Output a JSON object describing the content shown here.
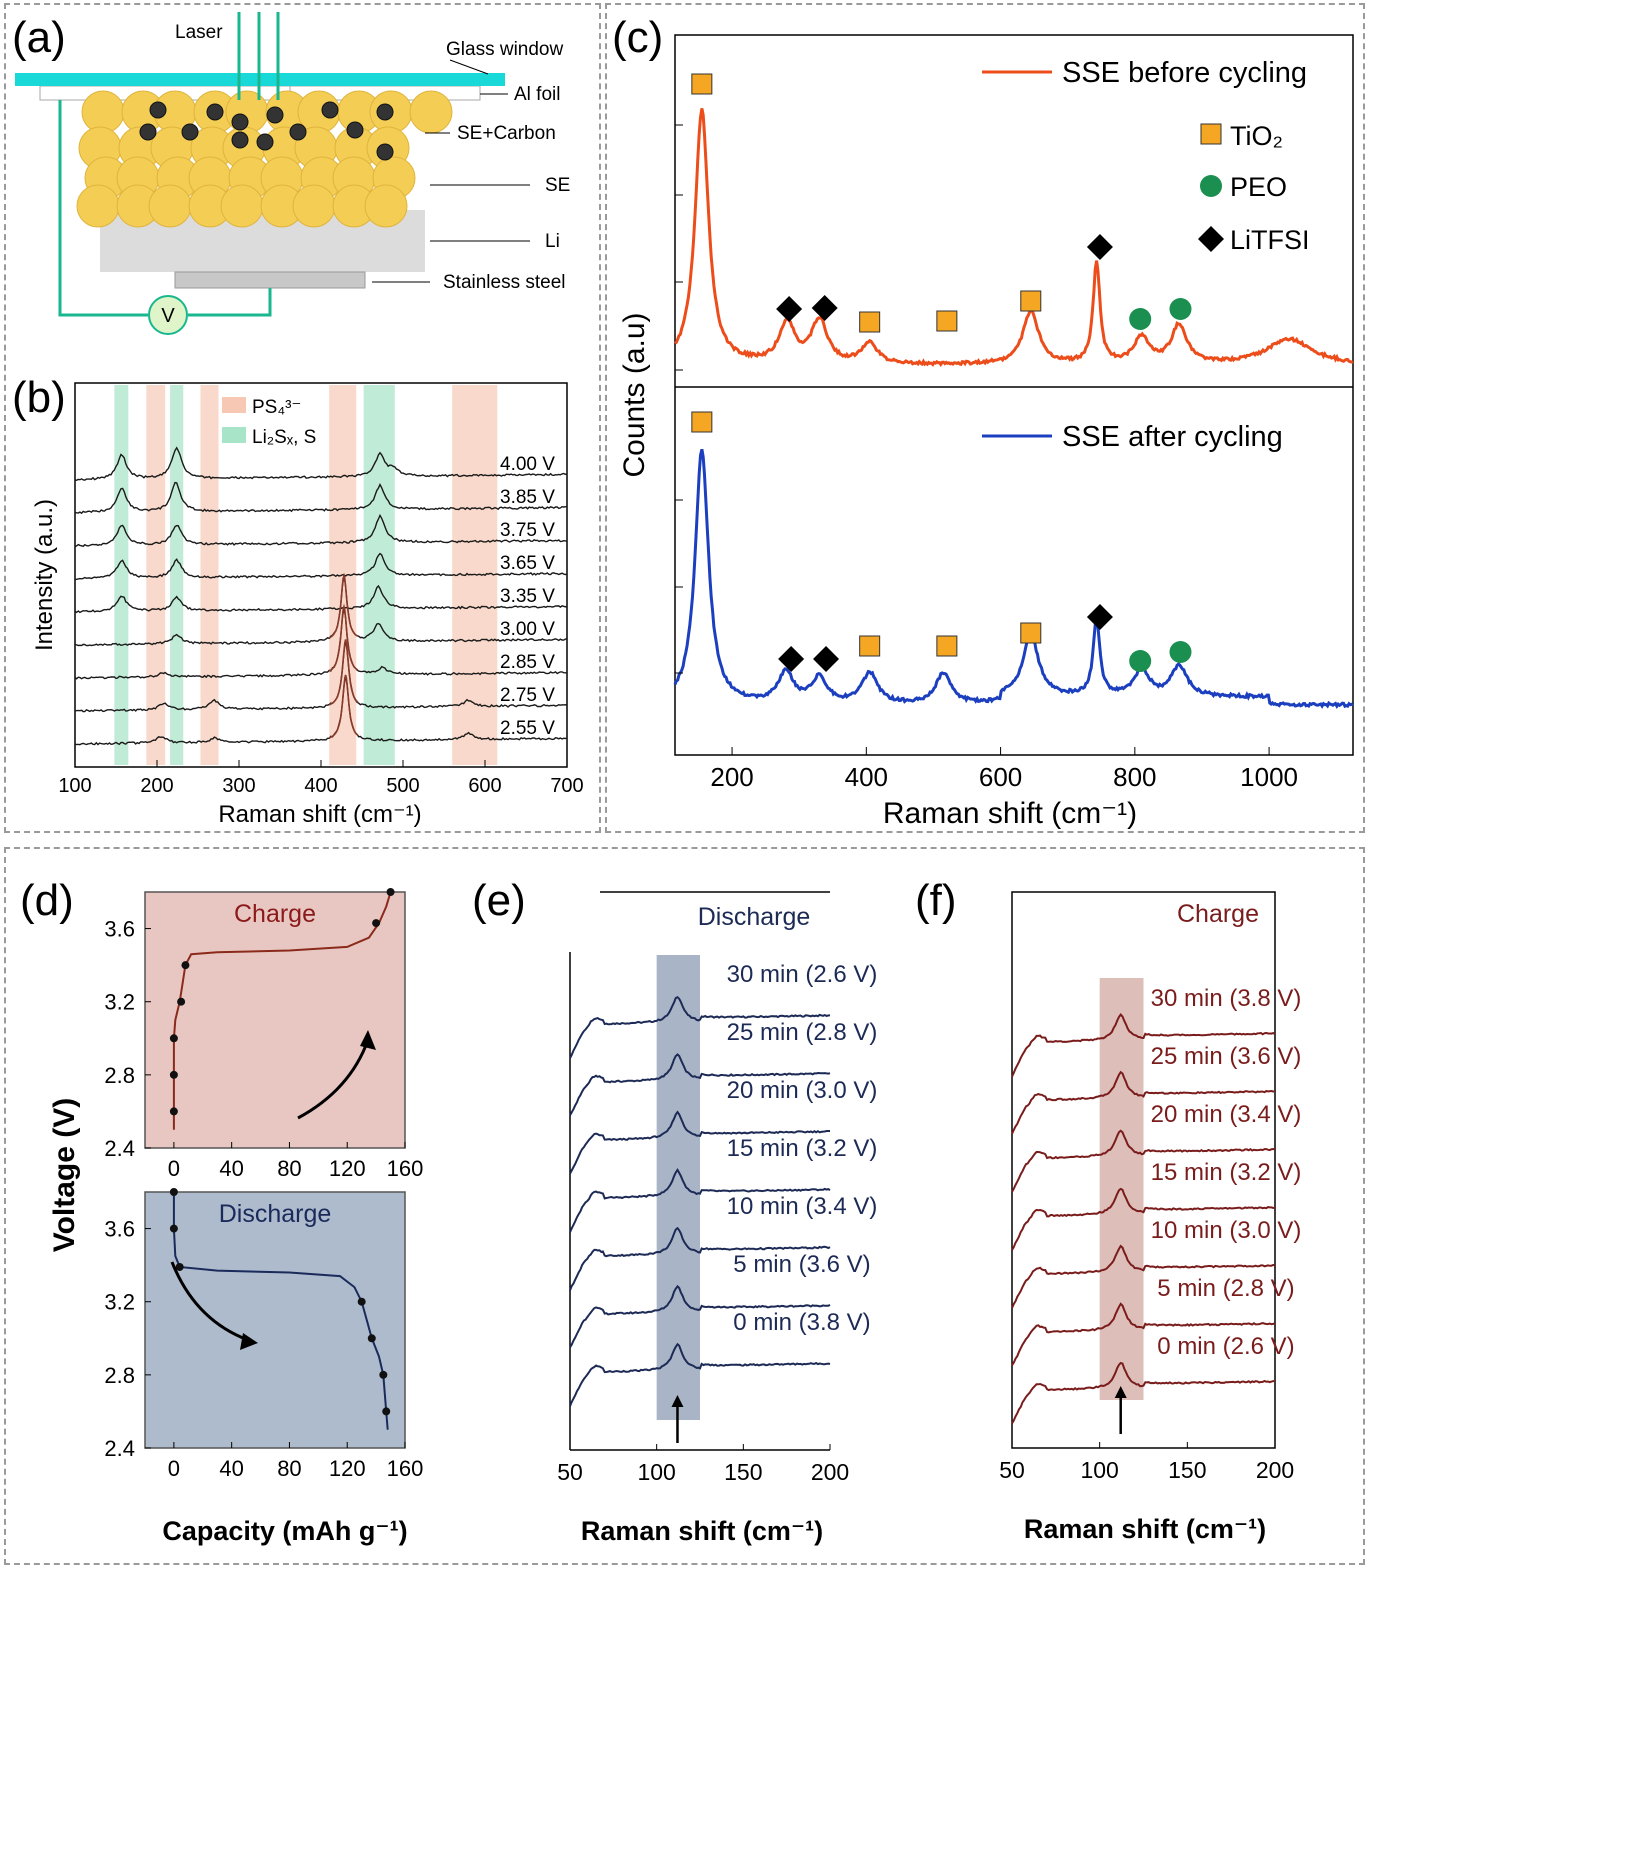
{
  "panels": {
    "a": "(a)",
    "b": "(b)",
    "c": "(c)",
    "d": "(d)",
    "e": "(e)",
    "f": "(f)"
  },
  "schematic": {
    "labels": {
      "laser": "Laser",
      "glass_window": "Glass window",
      "al_foil": "Al foil",
      "se_carbon": "SE+Carbon",
      "se": "SE",
      "li": "Li",
      "stainless_steel": "Stainless steel",
      "voltmeter": "V"
    },
    "colors": {
      "window": "#18d8d8",
      "particle": "#f4cd55",
      "wire": "#19b78f",
      "li_layer": "#d9d9d9"
    }
  },
  "chart_data": [
    {
      "id": "b",
      "type": "line",
      "xlabel": "Raman shift (cm⁻¹)",
      "ylabel": "Intensity (a.u.)",
      "xlim": [
        100,
        700
      ],
      "xticks": [
        100,
        200,
        300,
        400,
        500,
        600,
        700
      ],
      "legend": [
        {
          "name": "PS₄³⁻",
          "color": "#f7c8b4"
        },
        {
          "name": "Li₂Sₓ, S",
          "color": "#a8e4c8"
        }
      ],
      "bands": [
        {
          "x": [
            148,
            165
          ],
          "type": "Li2Sx"
        },
        {
          "x": [
            187,
            210
          ],
          "type": "PS4"
        },
        {
          "x": [
            216,
            232
          ],
          "type": "Li2Sx"
        },
        {
          "x": [
            253,
            275
          ],
          "type": "PS4"
        },
        {
          "x": [
            410,
            443
          ],
          "type": "PS4"
        },
        {
          "x": [
            452,
            490
          ],
          "type": "Li2Sx"
        },
        {
          "x": [
            560,
            615
          ],
          "type": "PS4"
        }
      ],
      "series": [
        {
          "name": "4.00 V",
          "peaks": [
            [
              157,
              1.1
            ],
            [
              224,
              1.4
            ],
            [
              472,
              1.0
            ],
            [
              488,
              0.3
            ]
          ]
        },
        {
          "name": "3.85 V",
          "peaks": [
            [
              157,
              1.1
            ],
            [
              223,
              1.3
            ],
            [
              472,
              1.1
            ]
          ]
        },
        {
          "name": "3.75 V",
          "peaks": [
            [
              157,
              0.9
            ],
            [
              224,
              0.9
            ],
            [
              472,
              1.2
            ]
          ]
        },
        {
          "name": "3.65 V",
          "peaks": [
            [
              157,
              0.8
            ],
            [
              224,
              0.8
            ],
            [
              472,
              1.0
            ]
          ]
        },
        {
          "name": "3.35 V",
          "peaks": [
            [
              157,
              0.7
            ],
            [
              224,
              0.6
            ],
            [
              470,
              1.0
            ]
          ]
        },
        {
          "name": "3.00 V",
          "peaks": [
            [
              224,
              0.4
            ],
            [
              428,
              3.0
            ],
            [
              470,
              0.8
            ]
          ]
        },
        {
          "name": "2.85 V",
          "peaks": [
            [
              208,
              0.2
            ],
            [
              428,
              3.1
            ],
            [
              475,
              0.3
            ]
          ]
        },
        {
          "name": "2.75 V",
          "peaks": [
            [
              208,
              0.3
            ],
            [
              270,
              0.4
            ],
            [
              430,
              3.1
            ],
            [
              580,
              0.3
            ]
          ]
        },
        {
          "name": "2.55 V",
          "peaks": [
            [
              205,
              0.3
            ],
            [
              270,
              0.2
            ],
            [
              430,
              3.0
            ],
            [
              580,
              0.3
            ]
          ]
        }
      ],
      "line_color": "#1a1a1a",
      "peak_color": "#8b3a2a"
    },
    {
      "id": "c",
      "type": "line",
      "xlabel": "Raman shift (cm⁻¹)",
      "ylabel": "Counts (a.u)",
      "xlim": [
        115,
        1125
      ],
      "xticks": [
        200,
        400,
        600,
        800,
        1000
      ],
      "legend_markers": [
        {
          "name": "TiO₂",
          "shape": "square",
          "color": "#f5a623"
        },
        {
          "name": "PEO",
          "shape": "circle",
          "color": "#1a8f4f"
        },
        {
          "name": "LiTFSI",
          "shape": "diamond",
          "color": "#000000"
        }
      ],
      "series": [
        {
          "name": "SSE before cycling",
          "color": "#ec4d1a",
          "peaks": [
            [
              155,
              1.0
            ],
            [
              282,
              0.16
            ],
            [
              330,
              0.17
            ],
            [
              405,
              0.08
            ],
            [
              645,
              0.21
            ],
            [
              743,
              0.4
            ],
            [
              810,
              0.1
            ],
            [
              866,
              0.15
            ],
            [
              1030,
              0.1
            ]
          ],
          "markers": [
            {
              "shape": "square",
              "x": 155
            },
            {
              "shape": "diamond",
              "x": 285
            },
            {
              "shape": "diamond",
              "x": 338
            },
            {
              "shape": "square",
              "x": 405
            },
            {
              "shape": "square",
              "x": 520
            },
            {
              "shape": "square",
              "x": 645
            },
            {
              "shape": "diamond",
              "x": 748
            },
            {
              "shape": "circle",
              "x": 808
            },
            {
              "shape": "circle",
              "x": 868
            }
          ]
        },
        {
          "name": "SSE after cycling",
          "color": "#1b3fbf",
          "peaks": [
            [
              155,
              1.0
            ],
            [
              280,
              0.12
            ],
            [
              330,
              0.1
            ],
            [
              405,
              0.12
            ],
            [
              515,
              0.12
            ],
            [
              645,
              0.24
            ],
            [
              743,
              0.3
            ],
            [
              810,
              0.1
            ],
            [
              866,
              0.12
            ]
          ],
          "markers": [
            {
              "shape": "square",
              "x": 155
            },
            {
              "shape": "diamond",
              "x": 288
            },
            {
              "shape": "diamond",
              "x": 340
            },
            {
              "shape": "square",
              "x": 405
            },
            {
              "shape": "square",
              "x": 520
            },
            {
              "shape": "square",
              "x": 645
            },
            {
              "shape": "diamond",
              "x": 748
            },
            {
              "shape": "circle",
              "x": 808
            },
            {
              "shape": "circle",
              "x": 868
            }
          ]
        }
      ]
    },
    {
      "id": "d",
      "type": "line",
      "xlabel": "Capacity (mAh g⁻¹)",
      "ylabel": "Voltage (V)",
      "xlim": [
        -20,
        160
      ],
      "ylim": [
        2.4,
        3.8
      ],
      "xticks": [
        0,
        40,
        80,
        120,
        160
      ],
      "yticks": [
        2.4,
        2.8,
        3.2,
        3.6
      ],
      "subplots": [
        {
          "name": "Charge",
          "bg": "#e8c7c2",
          "line_color": "#8b2a1a",
          "text_color": "#8b1a1a",
          "curve": [
            [
              0,
              2.5
            ],
            [
              0,
              2.6
            ],
            [
              0,
              2.8
            ],
            [
              0,
              3.0
            ],
            [
              1,
              3.1
            ],
            [
              4,
              3.2
            ],
            [
              6,
              3.3
            ],
            [
              8,
              3.4
            ],
            [
              12,
              3.46
            ],
            [
              30,
              3.47
            ],
            [
              80,
              3.48
            ],
            [
              120,
              3.5
            ],
            [
              135,
              3.55
            ],
            [
              142,
              3.63
            ],
            [
              147,
              3.72
            ],
            [
              150,
              3.8
            ]
          ],
          "points": [
            [
              0,
              2.6
            ],
            [
              0,
              2.8
            ],
            [
              0,
              3.0
            ],
            [
              5,
              3.2
            ],
            [
              8,
              3.4
            ],
            [
              140,
              3.63
            ],
            [
              150,
              3.8
            ]
          ]
        },
        {
          "name": "Discharge",
          "bg": "#aebbcd",
          "line_color": "#1a2a5a",
          "text_color": "#1a2a5a",
          "curve": [
            [
              0,
              3.8
            ],
            [
              0,
              3.6
            ],
            [
              1,
              3.45
            ],
            [
              4,
              3.39
            ],
            [
              30,
              3.37
            ],
            [
              80,
              3.36
            ],
            [
              115,
              3.34
            ],
            [
              125,
              3.28
            ],
            [
              130,
              3.2
            ],
            [
              137,
              3.0
            ],
            [
              142,
              2.9
            ],
            [
              145,
              2.8
            ],
            [
              147,
              2.6
            ],
            [
              148,
              2.5
            ]
          ],
          "points": [
            [
              0,
              3.8
            ],
            [
              0,
              3.6
            ],
            [
              4,
              3.39
            ],
            [
              130,
              3.2
            ],
            [
              137,
              3.0
            ],
            [
              145,
              2.8
            ],
            [
              147,
              2.6
            ]
          ]
        }
      ]
    },
    {
      "id": "e",
      "type": "line",
      "title": "Discharge",
      "xlabel": "Raman shift (cm⁻¹)",
      "xlim": [
        50,
        200
      ],
      "xticks": [
        50,
        100,
        150,
        200
      ],
      "band": [
        100,
        125
      ],
      "band_color": "#9aa8bd",
      "line_color": "#1c2a55",
      "text_color": "#1c2a55",
      "peak_x": 112,
      "series": [
        {
          "name": "30 min (2.6 V)"
        },
        {
          "name": "25 min (2.8 V)"
        },
        {
          "name": "20 min (3.0 V)"
        },
        {
          "name": "15 min (3.2 V)"
        },
        {
          "name": "10 min (3.4 V)"
        },
        {
          "name": "5 min (3.6 V)"
        },
        {
          "name": "0 min (3.8 V)"
        }
      ]
    },
    {
      "id": "f",
      "type": "line",
      "title": "Charge",
      "xlabel": "Raman shift (cm⁻¹)",
      "xlim": [
        50,
        200
      ],
      "xticks": [
        50,
        100,
        150,
        200
      ],
      "band": [
        100,
        125
      ],
      "band_color": "#d8b3ad",
      "line_color": "#7a1c1c",
      "text_color": "#7a1c1c",
      "peak_x": 112,
      "series": [
        {
          "name": "30 min (3.8 V)"
        },
        {
          "name": "25 min (3.6 V)"
        },
        {
          "name": "20 min (3.4 V)"
        },
        {
          "name": "15 min (3.2 V)"
        },
        {
          "name": "10 min (3.0 V)"
        },
        {
          "name": "5 min (2.8 V)"
        },
        {
          "name": "0 min (2.6 V)"
        }
      ]
    }
  ]
}
